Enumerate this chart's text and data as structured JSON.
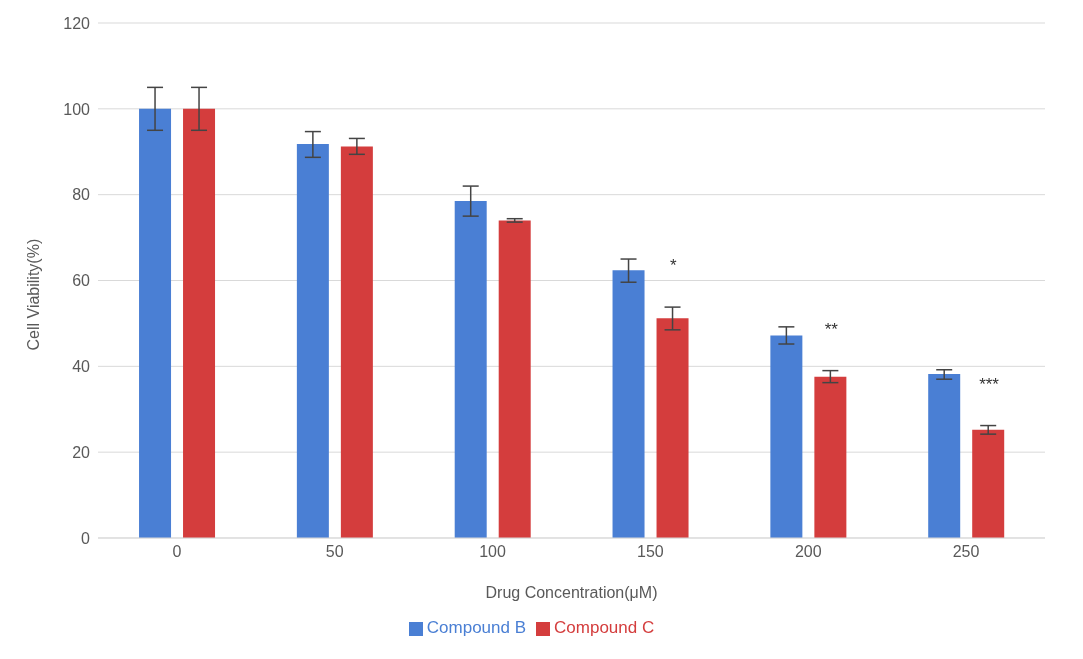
{
  "chart_data": {
    "type": "bar",
    "xlabel": "Drug Concentration(μM)",
    "ylabel": "Cell Viability(%)",
    "categories": [
      "0",
      "50",
      "100",
      "150",
      "200",
      "250"
    ],
    "series": [
      {
        "name": "Compound B",
        "color": "#4a7fd4",
        "values": [
          100,
          91.8,
          78.5,
          62.4,
          47.2,
          38.2
        ],
        "errors": [
          [
            95,
            105
          ],
          [
            88.7,
            94.7
          ],
          [
            75,
            82
          ],
          [
            59.6,
            65
          ],
          [
            45.2,
            49.2
          ],
          [
            37,
            39.2
          ]
        ]
      },
      {
        "name": "Compound C",
        "color": "#d43d3d",
        "values": [
          100,
          91.2,
          74,
          51.2,
          37.6,
          25.2
        ],
        "errors": [
          [
            95,
            105
          ],
          [
            89.4,
            93.1
          ],
          [
            73.6,
            74.4
          ],
          [
            48.5,
            53.8
          ],
          [
            36.2,
            39
          ],
          [
            24.2,
            26.2
          ]
        ]
      }
    ],
    "annotations": [
      "*",
      "**",
      "***"
    ],
    "ylim": [
      0,
      120
    ],
    "yticks": [
      0,
      20,
      40,
      60,
      80,
      100,
      120
    ],
    "grid": "y",
    "legend": "bottom"
  }
}
